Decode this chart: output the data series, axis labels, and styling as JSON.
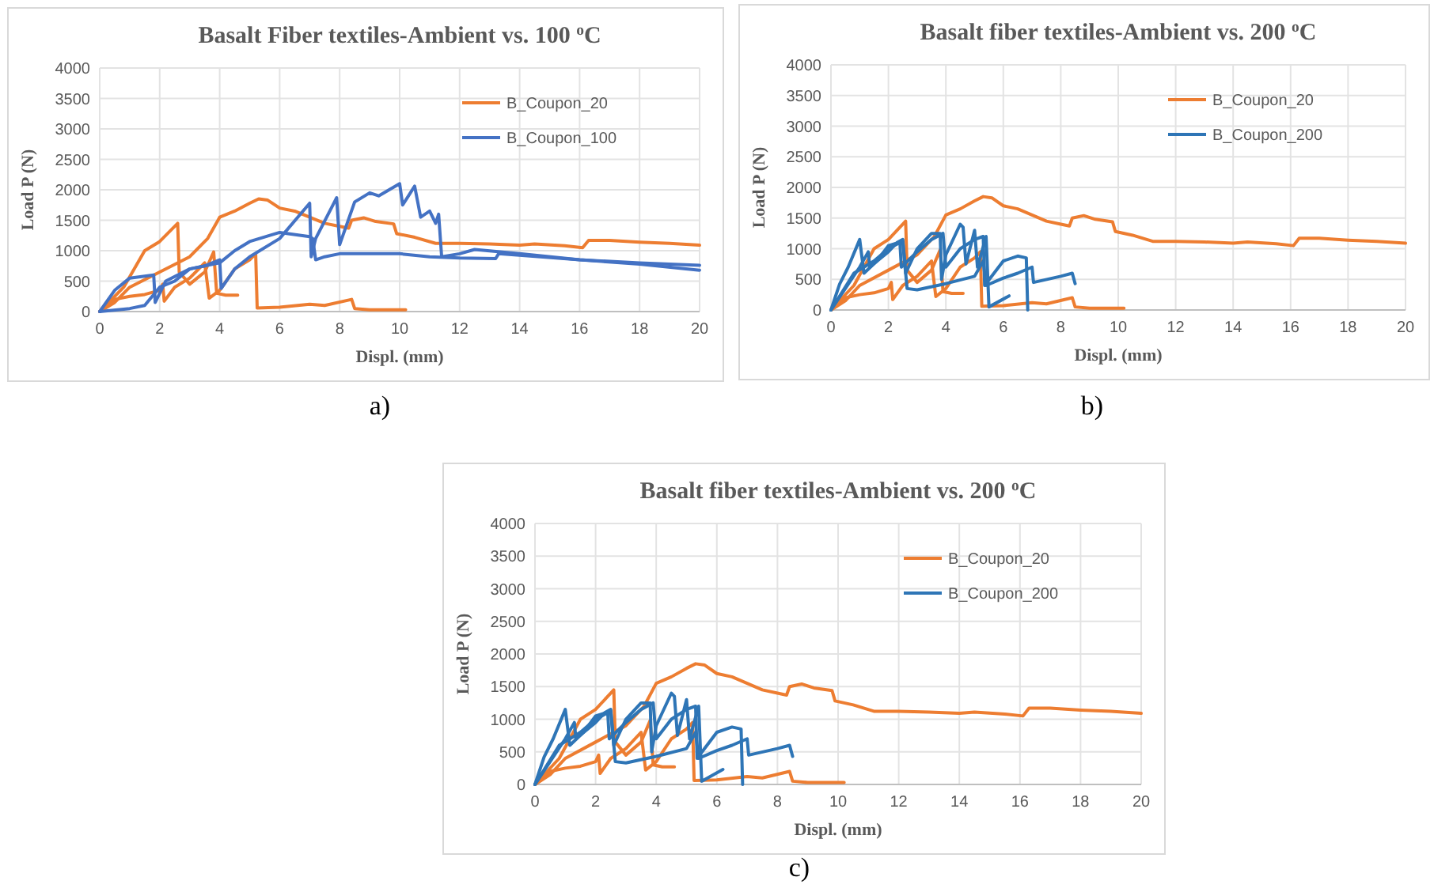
{
  "chart_data": [
    {
      "type": "line",
      "title": "Basalt Fiber textiles-Ambient vs. 100 $^{o}$C",
      "xlabel": "Displ. (mm)",
      "ylabel": "Load P (N)",
      "annotations": [
        "a)"
      ],
      "xlim": [
        0,
        20
      ],
      "xticks": [
        0,
        2,
        4,
        6,
        8,
        10,
        12,
        14,
        16,
        18,
        20
      ],
      "ylim": [
        0,
        4000
      ],
      "yticks": [
        0,
        500,
        1000,
        1500,
        2000,
        2500,
        3000,
        3500,
        4000
      ],
      "grid": true,
      "legend": "top right",
      "series": [
        {
          "name": "B_Coupon_20",
          "color": "#ed7d31",
          "x": [
            0,
            0.5,
            1,
            2,
            3,
            3.6,
            4,
            4.5,
            5,
            5.3,
            5.6,
            6,
            6.5,
            7,
            7.5,
            8,
            8.3,
            8.4,
            8.8,
            9.2,
            9.8,
            9.9,
            10.5,
            11.2,
            12,
            13,
            14,
            14.5,
            15.5,
            16.1,
            16.3,
            17,
            18,
            19,
            20
          ],
          "values": [
            0,
            150,
            400,
            650,
            900,
            1200,
            1550,
            1650,
            1780,
            1850,
            1830,
            1700,
            1650,
            1550,
            1450,
            1400,
            1370,
            1500,
            1540,
            1480,
            1440,
            1280,
            1220,
            1120,
            1120,
            1110,
            1090,
            1110,
            1080,
            1050,
            1170,
            1170,
            1140,
            1120,
            1090
          ]
        },
        {
          "color": "#ed7d31",
          "x": [
            0,
            0.8,
            1.5,
            2,
            2.6,
            2.65,
            3,
            3.5,
            3.8,
            3.9,
            4.2,
            4.6
          ],
          "values": [
            0,
            400,
            1000,
            1150,
            1450,
            650,
            450,
            650,
            980,
            300,
            270,
            270
          ]
        },
        {
          "color": "#ed7d31",
          "x": [
            0,
            0.5,
            1,
            1.5,
            2,
            2.1,
            2.15,
            2.5,
            3,
            3.5,
            3.65,
            4,
            4.5,
            5,
            5.2,
            5.25,
            6,
            7,
            7.5,
            8.4,
            8.5,
            9,
            10.2
          ],
          "values": [
            0,
            200,
            250,
            280,
            350,
            450,
            170,
            400,
            550,
            800,
            220,
            350,
            700,
            850,
            950,
            60,
            70,
            120,
            100,
            200,
            50,
            30,
            30
          ]
        },
        {
          "name": "B_Coupon_100",
          "color": "#4472c4",
          "x": [
            0,
            0.5,
            1,
            1.8,
            1.85,
            2.2,
            3,
            3.5,
            4,
            4.05,
            4.5,
            5,
            6,
            7,
            7.05,
            7.2,
            7.9,
            8,
            8.5,
            9,
            9.3,
            10,
            10.1,
            10.5,
            10.7,
            11,
            11.2,
            11.3,
            11.4,
            12,
            12.5,
            14,
            16,
            18,
            20
          ],
          "values": [
            0,
            350,
            550,
            600,
            150,
            500,
            700,
            750,
            850,
            380,
            700,
            900,
            1200,
            1780,
            900,
            1200,
            1870,
            1100,
            1800,
            1950,
            1900,
            2100,
            1750,
            2060,
            1550,
            1650,
            1450,
            1600,
            900,
            950,
            1020,
            950,
            850,
            780,
            680
          ]
        },
        {
          "color": "#4472c4",
          "x": [
            0,
            1,
            1.5,
            2,
            2.5,
            3,
            4,
            4.5,
            5,
            6,
            7,
            7.1,
            7.2,
            7.5,
            8,
            9,
            10,
            11,
            12,
            13.2,
            13.3,
            16,
            18,
            20
          ],
          "values": [
            0,
            50,
            100,
            400,
            500,
            700,
            800,
            1000,
            1150,
            1300,
            1230,
            1200,
            850,
            900,
            950,
            950,
            950,
            900,
            880,
            870,
            950,
            850,
            800,
            760
          ]
        }
      ]
    },
    {
      "type": "line",
      "title": "Basalt fiber textiles-Ambient vs. 200 $^{o}$C",
      "xlabel": "Displ. (mm)",
      "ylabel": "Load P (N)",
      "annotations": [
        "b)"
      ],
      "xlim": [
        0,
        20
      ],
      "xticks": [
        0,
        2,
        4,
        6,
        8,
        10,
        12,
        14,
        16,
        18,
        20
      ],
      "ylim": [
        0,
        4000
      ],
      "yticks": [
        0,
        500,
        1000,
        1500,
        2000,
        2500,
        3000,
        3500,
        4000
      ],
      "grid": true,
      "legend": "top right",
      "series": [
        {
          "name": "B_Coupon_20",
          "color": "#ed7d31",
          "x": [
            0,
            0.5,
            1,
            2,
            3,
            3.6,
            4,
            4.5,
            5,
            5.3,
            5.6,
            6,
            6.5,
            7,
            7.5,
            8,
            8.3,
            8.4,
            8.8,
            9.2,
            9.8,
            9.9,
            10.5,
            11.2,
            12,
            13,
            14,
            14.5,
            15.5,
            16.1,
            16.3,
            17,
            18,
            19,
            20
          ],
          "values": [
            0,
            150,
            400,
            650,
            900,
            1200,
            1550,
            1650,
            1780,
            1850,
            1830,
            1700,
            1650,
            1550,
            1450,
            1400,
            1370,
            1500,
            1540,
            1480,
            1440,
            1280,
            1220,
            1120,
            1120,
            1110,
            1090,
            1110,
            1080,
            1050,
            1170,
            1170,
            1140,
            1120,
            1090
          ]
        },
        {
          "color": "#ed7d31",
          "x": [
            0,
            0.8,
            1.5,
            2,
            2.6,
            2.65,
            3,
            3.5,
            3.8,
            3.9,
            4.2,
            4.6
          ],
          "values": [
            0,
            400,
            1000,
            1150,
            1450,
            650,
            450,
            650,
            980,
            300,
            270,
            270
          ]
        },
        {
          "color": "#ed7d31",
          "x": [
            0,
            0.5,
            1,
            1.5,
            2,
            2.1,
            2.15,
            2.5,
            3,
            3.5,
            3.65,
            4,
            4.5,
            5,
            5.2,
            5.25,
            6,
            7,
            7.5,
            8.4,
            8.5,
            9,
            10.2
          ],
          "values": [
            0,
            200,
            250,
            280,
            350,
            450,
            170,
            400,
            550,
            800,
            220,
            350,
            700,
            850,
            950,
            60,
            70,
            120,
            100,
            200,
            50,
            30,
            30
          ]
        },
        {
          "name": "B_Coupon_200",
          "color": "#2e75b6",
          "x": [
            0,
            0.3,
            0.6,
            1,
            1.15,
            1.6,
            2,
            2.5,
            2.65,
            3,
            4,
            5,
            5.3,
            5.4,
            6,
            6.5,
            7,
            7.05,
            8,
            8.4,
            8.5
          ],
          "values": [
            0,
            420,
            700,
            1150,
            600,
            800,
            1050,
            1120,
            350,
            330,
            430,
            550,
            800,
            400,
            520,
            600,
            700,
            450,
            550,
            600,
            430
          ]
        },
        {
          "color": "#2e75b6",
          "x": [
            0,
            0.5,
            1,
            1.3,
            1.35,
            2,
            2.3,
            2.5,
            2.6,
            3,
            3.5,
            3.8,
            3.85,
            4,
            4.5,
            4.6,
            4.7,
            5,
            5.1,
            5.4,
            5.5,
            6.2
          ],
          "values": [
            0,
            350,
            700,
            950,
            700,
            950,
            1100,
            1150,
            600,
            1000,
            1250,
            1250,
            500,
            900,
            1400,
            1350,
            750,
            1300,
            700,
            1200,
            50,
            230
          ]
        },
        {
          "color": "#2e75b6",
          "x": [
            0,
            0.8,
            1.5,
            2,
            2.4,
            2.45,
            3,
            3.5,
            3.9,
            4,
            4.5,
            5,
            5.3,
            5.35,
            6,
            6.5,
            6.8,
            6.85
          ],
          "values": [
            0,
            600,
            800,
            1000,
            1100,
            700,
            950,
            1150,
            1250,
            700,
            1000,
            1150,
            1200,
            400,
            800,
            880,
            850,
            0
          ]
        }
      ]
    },
    {
      "type": "line",
      "title": "Basalt fiber textiles-Ambient vs. 200 $^{o}$C",
      "xlabel": "Displ. (mm)",
      "ylabel": "Load P (N)",
      "annotations": [
        "c)"
      ],
      "xlim": [
        0,
        20
      ],
      "xticks": [
        0,
        2,
        4,
        6,
        8,
        10,
        12,
        14,
        16,
        18,
        20
      ],
      "ylim": [
        0,
        4000
      ],
      "yticks": [
        0,
        500,
        1000,
        1500,
        2000,
        2500,
        3000,
        3500,
        4000
      ],
      "grid": true,
      "legend": "top right",
      "series": [
        {
          "name": "B_Coupon_20",
          "color": "#ed7d31",
          "x": [
            0,
            0.5,
            1,
            2,
            3,
            3.6,
            4,
            4.5,
            5,
            5.3,
            5.6,
            6,
            6.5,
            7,
            7.5,
            8,
            8.3,
            8.4,
            8.8,
            9.2,
            9.8,
            9.9,
            10.5,
            11.2,
            12,
            13,
            14,
            14.5,
            15.5,
            16.1,
            16.3,
            17,
            18,
            19,
            20
          ],
          "values": [
            0,
            150,
            400,
            650,
            900,
            1200,
            1550,
            1650,
            1780,
            1850,
            1830,
            1700,
            1650,
            1550,
            1450,
            1400,
            1370,
            1500,
            1540,
            1480,
            1440,
            1280,
            1220,
            1120,
            1120,
            1110,
            1090,
            1110,
            1080,
            1050,
            1170,
            1170,
            1140,
            1120,
            1090
          ]
        },
        {
          "color": "#ed7d31",
          "x": [
            0,
            0.8,
            1.5,
            2,
            2.6,
            2.65,
            3,
            3.5,
            3.8,
            3.9,
            4.2,
            4.6
          ],
          "values": [
            0,
            400,
            1000,
            1150,
            1450,
            650,
            450,
            650,
            980,
            300,
            270,
            270
          ]
        },
        {
          "color": "#ed7d31",
          "x": [
            0,
            0.5,
            1,
            1.5,
            2,
            2.1,
            2.15,
            2.5,
            3,
            3.5,
            3.65,
            4,
            4.5,
            5,
            5.2,
            5.25,
            6,
            7,
            7.5,
            8.4,
            8.5,
            9,
            10.2
          ],
          "values": [
            0,
            200,
            250,
            280,
            350,
            450,
            170,
            400,
            550,
            800,
            220,
            350,
            700,
            850,
            950,
            60,
            70,
            120,
            100,
            200,
            50,
            30,
            30
          ]
        },
        {
          "name": "B_Coupon_200",
          "color": "#2e75b6",
          "x": [
            0,
            0.3,
            0.6,
            1,
            1.15,
            1.6,
            2,
            2.5,
            2.65,
            3,
            4,
            5,
            5.3,
            5.4,
            6,
            6.5,
            7,
            7.05,
            8,
            8.4,
            8.5
          ],
          "values": [
            0,
            420,
            700,
            1150,
            600,
            800,
            1050,
            1120,
            350,
            330,
            430,
            550,
            800,
            400,
            520,
            600,
            700,
            450,
            550,
            600,
            430
          ]
        },
        {
          "color": "#2e75b6",
          "x": [
            0,
            0.5,
            1,
            1.3,
            1.35,
            2,
            2.3,
            2.5,
            2.6,
            3,
            3.5,
            3.8,
            3.85,
            4,
            4.5,
            4.6,
            4.7,
            5,
            5.1,
            5.4,
            5.5,
            6.2
          ],
          "values": [
            0,
            350,
            700,
            950,
            700,
            950,
            1100,
            1150,
            600,
            1000,
            1250,
            1250,
            500,
            900,
            1400,
            1350,
            750,
            1300,
            700,
            1200,
            50,
            230
          ]
        },
        {
          "color": "#2e75b6",
          "x": [
            0,
            0.8,
            1.5,
            2,
            2.4,
            2.45,
            3,
            3.5,
            3.9,
            4,
            4.5,
            5,
            5.3,
            5.35,
            6,
            6.5,
            6.8,
            6.85
          ],
          "values": [
            0,
            600,
            800,
            1000,
            1100,
            700,
            950,
            1150,
            1250,
            700,
            1000,
            1150,
            1200,
            400,
            800,
            880,
            850,
            0
          ]
        }
      ]
    }
  ]
}
